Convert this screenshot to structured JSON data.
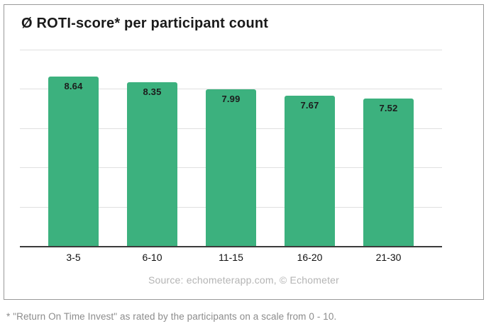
{
  "chart_data": {
    "type": "bar",
    "title": "Ø ROTI-score* per participant count",
    "categories": [
      "3-5",
      "6-10",
      "11-15",
      "16-20",
      "21-30"
    ],
    "values": [
      8.64,
      8.35,
      7.99,
      7.67,
      7.52
    ],
    "xlabel": "",
    "ylabel": "",
    "ylim": [
      0,
      10
    ],
    "gridline_step": 2,
    "grid": "horizontal",
    "legend": "none",
    "value_label_position": "inside-top",
    "value_label_decimals": 2,
    "bar_color": "#3cb17e"
  },
  "source_caption": "Source: echometerapp.com, © Echometer",
  "footnote": "* \"Return On Time Invest\" as rated by the participants on a scale from 0 - 10.",
  "colors": {
    "bar": "#3cb17e",
    "axis": "#3b3b3b",
    "gridline": "#e0e0e0",
    "card_border": "#999999",
    "title_text": "#1a1a1a",
    "value_label_text": "#1c1c1c",
    "tick_label_text": "#111111",
    "source_text": "#b4b4b4",
    "footnote_text": "#8c8c8c"
  }
}
